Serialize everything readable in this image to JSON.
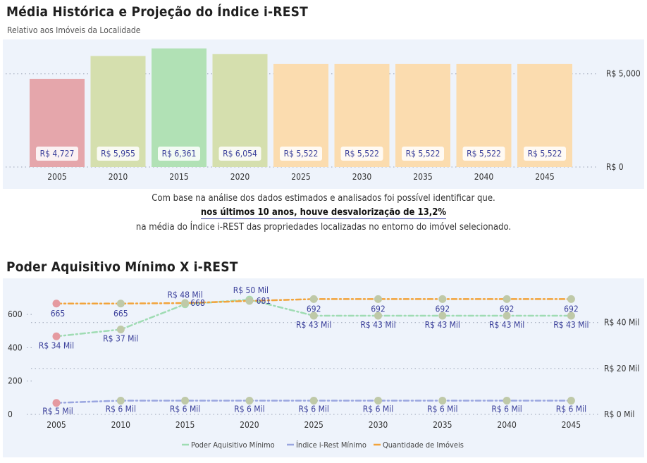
{
  "bar_section": {
    "title": "Média Histórica e Projeção do Índice i-REST",
    "subtitle": "Relativo aos Imóveis da Localidade"
  },
  "analysis": {
    "line1": "Com base na análise dos dados estimados e analisados foi possível identificar que.",
    "line2": "nos últimos 10 anos, houve desvalorização de 13,2%",
    "line3": "na média do Índice i-REST das propriedades localizadas no entorno do imóvel selecionado."
  },
  "line_section": {
    "title": "Poder Aquisitivo Mínimo X i-REST"
  },
  "colors": {
    "panel_bg": "#eef3fb",
    "bar_historic_low": "#e5a6ab",
    "bar_historic": "#d5dfae",
    "bar_peak": "#b1e1b5",
    "bar_projection": "#fbdcaf",
    "label_text": "#3a3f9a",
    "poder_line": "#9fdcb3",
    "irest_line": "#9aa6e0",
    "quantidade_line": "#f2a33a",
    "marker_default": "#bfc9a8",
    "marker_low": "#e59aa0",
    "marker_peak": "#a8dcb0"
  },
  "chart_data": [
    {
      "type": "bar",
      "categories": [
        "2005",
        "2010",
        "2015",
        "2020",
        "2025",
        "2030",
        "2035",
        "2040",
        "2045"
      ],
      "values": [
        4727,
        5955,
        6361,
        6054,
        5522,
        5522,
        5522,
        5522,
        5522
      ],
      "value_labels": [
        "R$ 4,727",
        "R$ 5,955",
        "R$ 6,361",
        "R$ 6,054",
        "R$ 5,522",
        "R$ 5,522",
        "R$ 5,522",
        "R$ 5,522",
        "R$ 5,522"
      ],
      "y_ticks": [
        {
          "value": 0,
          "label": "R$ 0"
        },
        {
          "value": 5000,
          "label": "R$ 5,000"
        }
      ],
      "ylim": [
        0,
        6500
      ],
      "y_axis_side": "right",
      "grid": "dotted"
    },
    {
      "type": "line",
      "x": [
        "2005",
        "2010",
        "2015",
        "2020",
        "2025",
        "2030",
        "2035",
        "2040",
        "2045"
      ],
      "series": [
        {
          "name": "Poder Aquisitivo Mínimo",
          "axis": "right",
          "values": [
            34000,
            37000,
            48000,
            50000,
            43000,
            43000,
            43000,
            43000,
            43000
          ],
          "labels": [
            "R$ 34 Mil",
            "R$ 37 Mil",
            "R$ 48 Mil",
            "R$ 50 Mil",
            "R$ 43 Mil",
            "R$ 43 Mil",
            "R$ 43 Mil",
            "R$ 43 Mil",
            "R$ 43 Mil"
          ]
        },
        {
          "name": "Índice i-Rest Mínimo",
          "axis": "right",
          "values": [
            5000,
            6000,
            6000,
            6000,
            6000,
            6000,
            6000,
            6000,
            6000
          ],
          "labels": [
            "R$ 5 Mil",
            "R$ 6 Mil",
            "R$ 6 Mil",
            "R$ 6 Mil",
            "R$ 6 Mil",
            "R$ 6 Mil",
            "R$ 6 Mil",
            "R$ 6 Mil",
            "R$ 6 Mil"
          ]
        },
        {
          "name": "Quantidade de Imóveis",
          "axis": "left",
          "values": [
            665,
            665,
            668,
            681,
            692,
            692,
            692,
            692,
            692
          ],
          "labels": [
            "665",
            "665",
            "668",
            "681",
            "692",
            "692",
            "692",
            "692",
            "692"
          ]
        }
      ],
      "left_ticks": [
        {
          "value": 0,
          "label": "0"
        },
        {
          "value": 200,
          "label": "200"
        },
        {
          "value": 400,
          "label": "400"
        },
        {
          "value": 600,
          "label": "600"
        }
      ],
      "right_ticks": [
        {
          "value": 0,
          "label": "R$ 0 Mil"
        },
        {
          "value": 20000,
          "label": "R$ 20 Mil"
        },
        {
          "value": 40000,
          "label": "R$ 40 Mil"
        }
      ],
      "left_ylim": [
        0,
        730
      ],
      "right_ylim": [
        0,
        53000
      ],
      "legend": "bottom-center"
    }
  ]
}
